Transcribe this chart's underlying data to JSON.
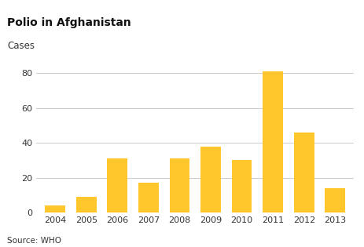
{
  "title": "Polio in Afghanistan",
  "cases_label": "Cases",
  "source": "Source: WHO",
  "years": [
    2004,
    2005,
    2006,
    2007,
    2008,
    2009,
    2010,
    2011,
    2012,
    2013
  ],
  "values": [
    4,
    9,
    31,
    17,
    31,
    38,
    30,
    81,
    46,
    14
  ],
  "bar_color": "#FFC72C",
  "background_color": "#ffffff",
  "grid_color": "#cccccc",
  "ylim": [
    0,
    88
  ],
  "yticks": [
    0,
    20,
    40,
    60,
    80
  ],
  "title_fontsize": 10,
  "label_fontsize": 8.5,
  "tick_fontsize": 8,
  "source_fontsize": 7.5,
  "text_color": "#333333"
}
